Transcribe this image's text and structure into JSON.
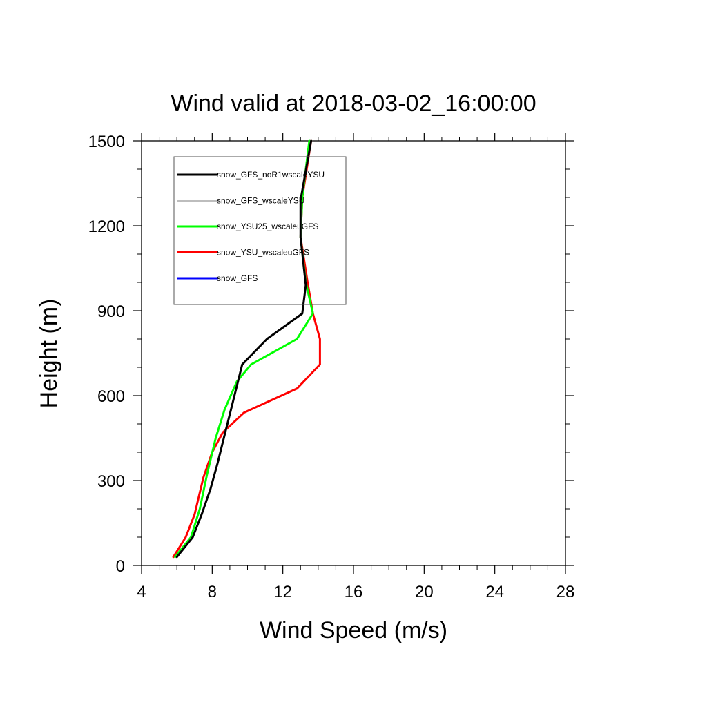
{
  "chart_data": {
    "type": "line",
    "title": "Wind valid at 2018-03-02_16:00:00",
    "xlabel": "Wind Speed (m/s)",
    "ylabel": "Height (m)",
    "xlim": [
      4,
      28
    ],
    "ylim": [
      0,
      1500
    ],
    "xticks": [
      4,
      8,
      12,
      16,
      20,
      24,
      28
    ],
    "yticks": [
      0,
      300,
      600,
      900,
      1200,
      1500
    ],
    "grid": false,
    "legend_position": "top-left",
    "series": [
      {
        "name": "snow_GFS_noR1wscaleYSU",
        "color": "#000000",
        "points": [
          [
            6.0,
            30
          ],
          [
            6.9,
            100
          ],
          [
            7.4,
            180
          ],
          [
            7.9,
            270
          ],
          [
            8.3,
            360
          ],
          [
            8.7,
            460
          ],
          [
            9.1,
            560
          ],
          [
            9.7,
            710
          ],
          [
            11.1,
            800
          ],
          [
            13.1,
            890
          ],
          [
            13.3,
            990
          ],
          [
            13.0,
            1160
          ],
          [
            13.0,
            1290
          ],
          [
            13.6,
            1500
          ]
        ]
      },
      {
        "name": "snow_GFS_wscaleYSU",
        "color": "#bdbdbd",
        "points": [
          [
            6.0,
            30
          ],
          [
            6.9,
            100
          ],
          [
            7.4,
            180
          ],
          [
            7.9,
            270
          ],
          [
            8.3,
            360
          ],
          [
            8.7,
            460
          ],
          [
            9.1,
            560
          ],
          [
            9.7,
            710
          ],
          [
            11.1,
            800
          ],
          [
            13.1,
            890
          ],
          [
            13.3,
            990
          ],
          [
            13.0,
            1160
          ],
          [
            13.0,
            1290
          ],
          [
            13.6,
            1500
          ]
        ]
      },
      {
        "name": "snow_YSU25_wscaleuGFS",
        "color": "#00ff00",
        "points": [
          [
            5.9,
            30
          ],
          [
            6.8,
            100
          ],
          [
            7.3,
            200
          ],
          [
            7.7,
            320
          ],
          [
            8.2,
            450
          ],
          [
            8.7,
            550
          ],
          [
            9.4,
            650
          ],
          [
            10.2,
            710
          ],
          [
            12.8,
            800
          ],
          [
            13.7,
            890
          ],
          [
            13.3,
            1000
          ],
          [
            13.0,
            1160
          ],
          [
            13.1,
            1300
          ],
          [
            13.5,
            1500
          ]
        ]
      },
      {
        "name": "snow_YSU_wscaleuGFS",
        "color": "#ff0000",
        "points": [
          [
            5.8,
            30
          ],
          [
            6.5,
            100
          ],
          [
            7.0,
            180
          ],
          [
            7.5,
            310
          ],
          [
            8.0,
            400
          ],
          [
            8.6,
            470
          ],
          [
            9.8,
            540
          ],
          [
            12.8,
            625
          ],
          [
            14.1,
            710
          ],
          [
            14.1,
            800
          ],
          [
            13.7,
            890
          ],
          [
            13.4,
            1000
          ],
          [
            13.0,
            1160
          ],
          [
            13.1,
            1300
          ],
          [
            13.6,
            1500
          ]
        ]
      },
      {
        "name": "snow_GFS",
        "color": "#0000ff",
        "points": []
      }
    ]
  }
}
